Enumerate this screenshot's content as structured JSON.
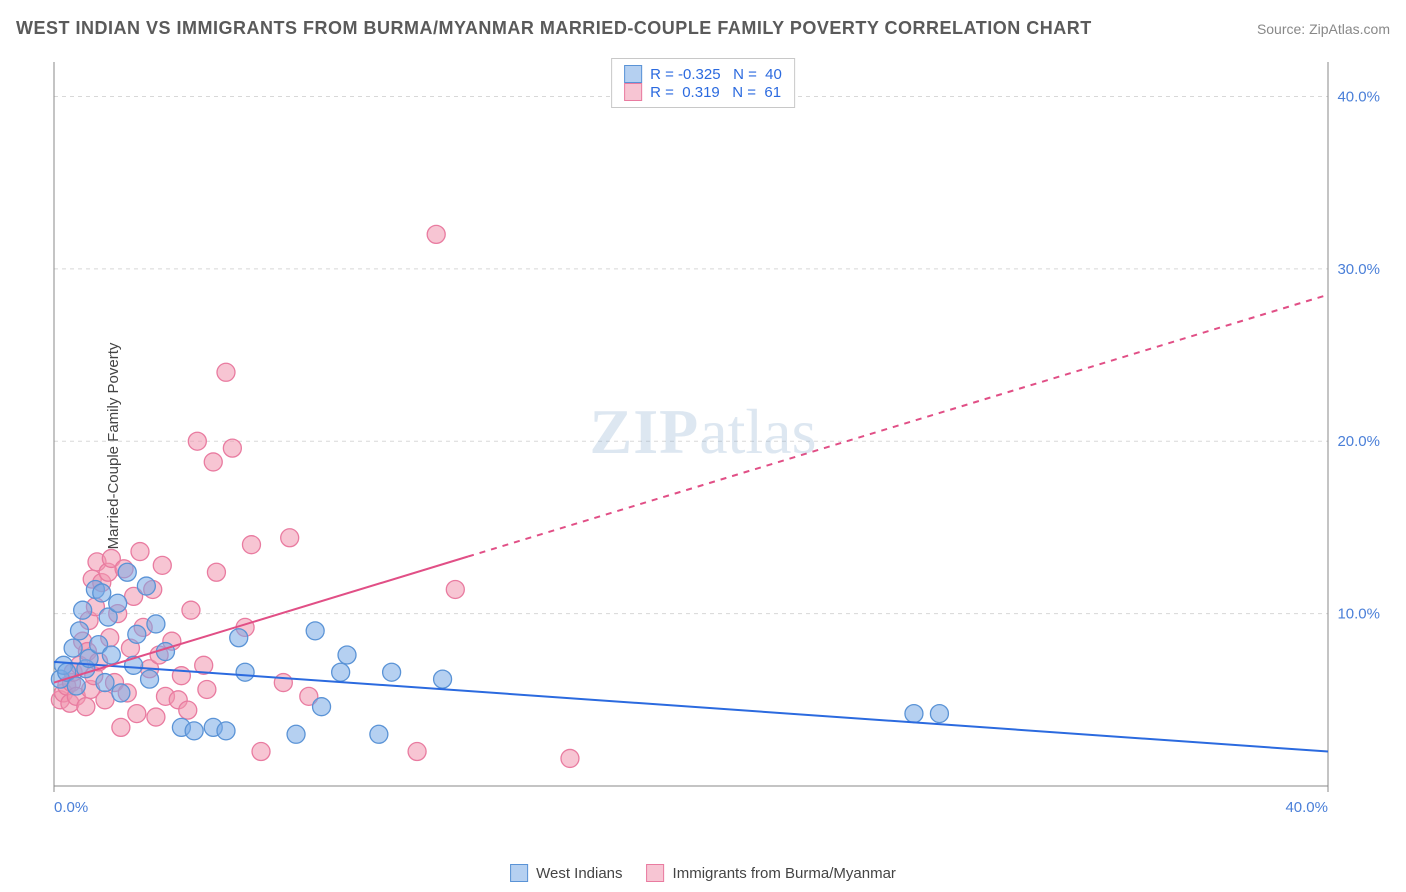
{
  "header": {
    "title": "WEST INDIAN VS IMMIGRANTS FROM BURMA/MYANMAR MARRIED-COUPLE FAMILY POVERTY CORRELATION CHART",
    "source": "Source: ZipAtlas.com"
  },
  "axes": {
    "ylabel": "Married-Couple Family Poverty",
    "xlim": [
      0,
      40
    ],
    "ylim": [
      0,
      42
    ],
    "xticks": [
      {
        "v": 0,
        "label": "0.0%"
      },
      {
        "v": 40,
        "label": "40.0%"
      }
    ],
    "yticks": [
      {
        "v": 10,
        "label": "10.0%"
      },
      {
        "v": 20,
        "label": "20.0%"
      },
      {
        "v": 30,
        "label": "30.0%"
      },
      {
        "v": 40,
        "label": "40.0%"
      }
    ],
    "grid_color": "#d8d8d8",
    "axis_color": "#888888",
    "tick_color": "#4a7fd8",
    "background_color": "#ffffff"
  },
  "watermark": {
    "zip": "ZIP",
    "atlas": "atlas"
  },
  "series": [
    {
      "id": "west_indians",
      "label": "West Indians",
      "marker_fill": "rgba(120,170,230,0.55)",
      "marker_stroke": "#5a93d6",
      "marker_r": 9,
      "trend": {
        "x1": 0,
        "y1": 7.2,
        "x2": 40,
        "y2": 2.0,
        "color": "#2b6adf",
        "width": 2,
        "solid_to_x": 40
      },
      "R": "-0.325",
      "N": "40",
      "points": [
        [
          0.2,
          6.2
        ],
        [
          0.3,
          7.0
        ],
        [
          0.4,
          6.6
        ],
        [
          0.6,
          8.0
        ],
        [
          0.7,
          5.8
        ],
        [
          0.8,
          9.0
        ],
        [
          0.9,
          10.2
        ],
        [
          1.0,
          6.8
        ],
        [
          1.1,
          7.4
        ],
        [
          1.3,
          11.4
        ],
        [
          1.4,
          8.2
        ],
        [
          1.5,
          11.2
        ],
        [
          1.6,
          6.0
        ],
        [
          1.7,
          9.8
        ],
        [
          1.8,
          7.6
        ],
        [
          2.0,
          10.6
        ],
        [
          2.1,
          5.4
        ],
        [
          2.3,
          12.4
        ],
        [
          2.5,
          7.0
        ],
        [
          2.6,
          8.8
        ],
        [
          2.9,
          11.6
        ],
        [
          3.0,
          6.2
        ],
        [
          3.2,
          9.4
        ],
        [
          3.5,
          7.8
        ],
        [
          4.0,
          3.4
        ],
        [
          4.4,
          3.2
        ],
        [
          5.0,
          3.4
        ],
        [
          5.4,
          3.2
        ],
        [
          5.8,
          8.6
        ],
        [
          6.0,
          6.6
        ],
        [
          7.6,
          3.0
        ],
        [
          8.2,
          9.0
        ],
        [
          8.4,
          4.6
        ],
        [
          9.0,
          6.6
        ],
        [
          9.2,
          7.6
        ],
        [
          10.2,
          3.0
        ],
        [
          10.6,
          6.6
        ],
        [
          12.2,
          6.2
        ],
        [
          27.0,
          4.2
        ],
        [
          27.8,
          4.2
        ]
      ]
    },
    {
      "id": "burma_myanmar",
      "label": "Immigrants from Burma/Myanmar",
      "marker_fill": "rgba(240,150,175,0.55)",
      "marker_stroke": "#e97ba0",
      "marker_r": 9,
      "trend": {
        "x1": 0,
        "y1": 6.0,
        "x2": 40,
        "y2": 28.5,
        "color": "#e14f86",
        "width": 2,
        "solid_to_x": 13
      },
      "R": "0.319",
      "N": "61",
      "points": [
        [
          0.2,
          5.0
        ],
        [
          0.3,
          5.4
        ],
        [
          0.4,
          5.8
        ],
        [
          0.5,
          4.8
        ],
        [
          0.55,
          6.0
        ],
        [
          0.6,
          6.6
        ],
        [
          0.7,
          5.2
        ],
        [
          0.8,
          7.0
        ],
        [
          0.9,
          8.4
        ],
        [
          1.0,
          4.6
        ],
        [
          1.05,
          7.8
        ],
        [
          1.1,
          9.6
        ],
        [
          1.15,
          5.6
        ],
        [
          1.2,
          12.0
        ],
        [
          1.25,
          6.4
        ],
        [
          1.3,
          10.4
        ],
        [
          1.35,
          13.0
        ],
        [
          1.4,
          7.2
        ],
        [
          1.5,
          11.8
        ],
        [
          1.6,
          5.0
        ],
        [
          1.7,
          12.4
        ],
        [
          1.75,
          8.6
        ],
        [
          1.8,
          13.2
        ],
        [
          1.9,
          6.0
        ],
        [
          2.0,
          10.0
        ],
        [
          2.1,
          3.4
        ],
        [
          2.2,
          12.6
        ],
        [
          2.3,
          5.4
        ],
        [
          2.4,
          8.0
        ],
        [
          2.5,
          11.0
        ],
        [
          2.6,
          4.2
        ],
        [
          2.7,
          13.6
        ],
        [
          2.8,
          9.2
        ],
        [
          3.0,
          6.8
        ],
        [
          3.1,
          11.4
        ],
        [
          3.2,
          4.0
        ],
        [
          3.3,
          7.6
        ],
        [
          3.4,
          12.8
        ],
        [
          3.5,
          5.2
        ],
        [
          3.7,
          8.4
        ],
        [
          3.9,
          5.0
        ],
        [
          4.0,
          6.4
        ],
        [
          4.2,
          4.4
        ],
        [
          4.3,
          10.2
        ],
        [
          4.5,
          20.0
        ],
        [
          4.7,
          7.0
        ],
        [
          4.8,
          5.6
        ],
        [
          5.0,
          18.8
        ],
        [
          5.1,
          12.4
        ],
        [
          5.4,
          24.0
        ],
        [
          5.6,
          19.6
        ],
        [
          6.0,
          9.2
        ],
        [
          6.2,
          14.0
        ],
        [
          6.5,
          2.0
        ],
        [
          7.2,
          6.0
        ],
        [
          7.4,
          14.4
        ],
        [
          8.0,
          5.2
        ],
        [
          11.4,
          2.0
        ],
        [
          12.0,
          32.0
        ],
        [
          12.6,
          11.4
        ],
        [
          16.2,
          1.6
        ]
      ]
    }
  ],
  "legend_top": {
    "rows": [
      {
        "series": 0,
        "R_prefix": "R = ",
        "N_prefix": "N = "
      },
      {
        "series": 1,
        "R_prefix": "R = ",
        "N_prefix": "N = "
      }
    ]
  }
}
